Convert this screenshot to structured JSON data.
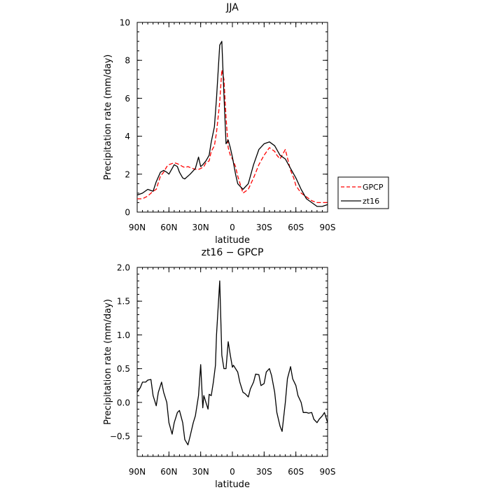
{
  "figure": {
    "legend": {
      "position": "right"
    }
  },
  "chart_data": [
    {
      "type": "line",
      "title": "JJA",
      "xlabel": "latitude",
      "ylabel": "Precipitation rate (mm/day)",
      "xlim": [
        90,
        -90
      ],
      "ylim": [
        0,
        10
      ],
      "x_ticks": [
        90,
        60,
        30,
        0,
        -30,
        -60,
        -90
      ],
      "x_tick_labels": [
        "90N",
        "60N",
        "30N",
        "0",
        "30S",
        "60S",
        "90S"
      ],
      "y_ticks": [
        0,
        2,
        4,
        6,
        8,
        10
      ],
      "y_tick_labels": [
        "0",
        "2",
        "4",
        "6",
        "8",
        "10"
      ],
      "grid": false,
      "legend": "right",
      "series": [
        {
          "name": "GPCP",
          "color": "#ff0000",
          "dash": "dashed",
          "x": [
            90,
            85,
            80,
            75,
            72,
            68,
            65,
            62,
            60,
            55,
            52,
            50,
            47,
            45,
            42,
            40,
            35,
            32,
            30,
            27,
            25,
            22,
            20,
            17,
            15,
            12,
            10,
            8,
            6,
            4,
            2,
            0,
            -3,
            -5,
            -10,
            -15,
            -20,
            -25,
            -30,
            -35,
            -40,
            -42,
            -45,
            -50,
            -55,
            -58,
            -60,
            -65,
            -70,
            -75,
            -80,
            -85,
            -90
          ],
          "y": [
            0.7,
            0.7,
            0.85,
            1.1,
            1.2,
            1.9,
            2.1,
            2.4,
            2.5,
            2.6,
            2.55,
            2.5,
            2.4,
            2.35,
            2.4,
            2.35,
            2.25,
            2.25,
            2.3,
            2.4,
            2.6,
            2.7,
            3.2,
            3.5,
            4.2,
            5.8,
            7.5,
            7.0,
            5.0,
            3.4,
            3.0,
            2.8,
            2.4,
            1.9,
            1.0,
            1.2,
            1.8,
            2.5,
            3.0,
            3.4,
            3.2,
            3.0,
            2.8,
            3.3,
            2.2,
            1.8,
            1.4,
            1.0,
            0.8,
            0.6,
            0.5,
            0.5,
            0.5
          ]
        },
        {
          "name": "zt16",
          "color": "#000000",
          "dash": "solid",
          "x": [
            90,
            85,
            80,
            75,
            72,
            68,
            65,
            62,
            60,
            55,
            52,
            50,
            47,
            45,
            40,
            35,
            32,
            30,
            28,
            25,
            22,
            20,
            17,
            15,
            12,
            10,
            8,
            6,
            4,
            2,
            0,
            -3,
            -5,
            -10,
            -15,
            -20,
            -25,
            -30,
            -35,
            -40,
            -45,
            -50,
            -55,
            -60,
            -65,
            -70,
            -75,
            -80,
            -85,
            -90
          ],
          "y": [
            0.9,
            1.0,
            1.2,
            1.1,
            1.6,
            2.1,
            2.2,
            2.1,
            2.0,
            2.5,
            2.4,
            2.1,
            1.8,
            1.75,
            2.0,
            2.3,
            2.9,
            2.4,
            2.5,
            2.7,
            3.0,
            3.7,
            4.5,
            6.0,
            8.8,
            9.0,
            6.2,
            3.6,
            3.8,
            3.4,
            2.9,
            2.0,
            1.5,
            1.2,
            1.5,
            2.5,
            3.3,
            3.6,
            3.7,
            3.5,
            3.0,
            2.8,
            2.3,
            1.8,
            1.2,
            0.7,
            0.5,
            0.3,
            0.3,
            0.4
          ]
        }
      ]
    },
    {
      "type": "line",
      "title": "zt16 − GPCP",
      "xlabel": "latitude",
      "ylabel": "Precipitation rate (mm/day)",
      "xlim": [
        90,
        -90
      ],
      "ylim": [
        -0.8,
        2.0
      ],
      "x_ticks": [
        90,
        60,
        30,
        0,
        -30,
        -60,
        -90
      ],
      "x_tick_labels": [
        "90N",
        "60N",
        "30N",
        "0",
        "30S",
        "60S",
        "90S"
      ],
      "y_ticks": [
        -0.5,
        0.0,
        0.5,
        1.0,
        1.5,
        2.0
      ],
      "y_tick_labels": [
        "−0.5",
        "0.0",
        "0.5",
        "1.0",
        "1.5",
        "2.0"
      ],
      "grid": false,
      "series": [
        {
          "color": "#000000",
          "dash": "solid",
          "x": [
            90,
            87,
            85,
            82,
            80,
            77,
            75,
            72,
            70,
            67,
            65,
            62,
            60,
            57,
            55,
            52,
            50,
            47,
            45,
            42,
            40,
            37,
            35,
            32,
            30,
            28,
            27,
            25,
            23,
            22,
            20,
            18,
            16,
            15,
            12,
            10,
            8,
            6,
            4,
            3,
            2,
            0,
            -1,
            -3,
            -5,
            -7,
            -10,
            -12,
            -15,
            -17,
            -20,
            -22,
            -25,
            -27,
            -30,
            -32,
            -35,
            -37,
            -40,
            -42,
            -45,
            -47,
            -50,
            -52,
            -55,
            -57,
            -60,
            -62,
            -65,
            -67,
            -70,
            -72,
            -75,
            -77,
            -80,
            -82,
            -85,
            -87,
            -90
          ],
          "y": [
            0.15,
            0.22,
            0.3,
            0.3,
            0.33,
            0.34,
            0.1,
            -0.05,
            0.15,
            0.3,
            0.15,
            0.0,
            -0.3,
            -0.47,
            -0.3,
            -0.15,
            -0.12,
            -0.3,
            -0.55,
            -0.63,
            -0.5,
            -0.3,
            -0.2,
            0.1,
            0.56,
            -0.08,
            0.1,
            0.0,
            -0.1,
            0.12,
            0.1,
            0.3,
            0.55,
            1.0,
            1.8,
            0.7,
            0.5,
            0.5,
            0.9,
            0.8,
            0.7,
            0.52,
            0.55,
            0.5,
            0.45,
            0.3,
            0.15,
            0.13,
            0.08,
            0.2,
            0.3,
            0.42,
            0.41,
            0.25,
            0.28,
            0.45,
            0.5,
            0.4,
            0.15,
            -0.15,
            -0.35,
            -0.43,
            0.0,
            0.35,
            0.53,
            0.35,
            0.25,
            0.1,
            0.0,
            -0.15,
            -0.15,
            -0.16,
            -0.15,
            -0.25,
            -0.3,
            -0.25,
            -0.2,
            -0.15,
            -0.3
          ]
        }
      ]
    }
  ]
}
